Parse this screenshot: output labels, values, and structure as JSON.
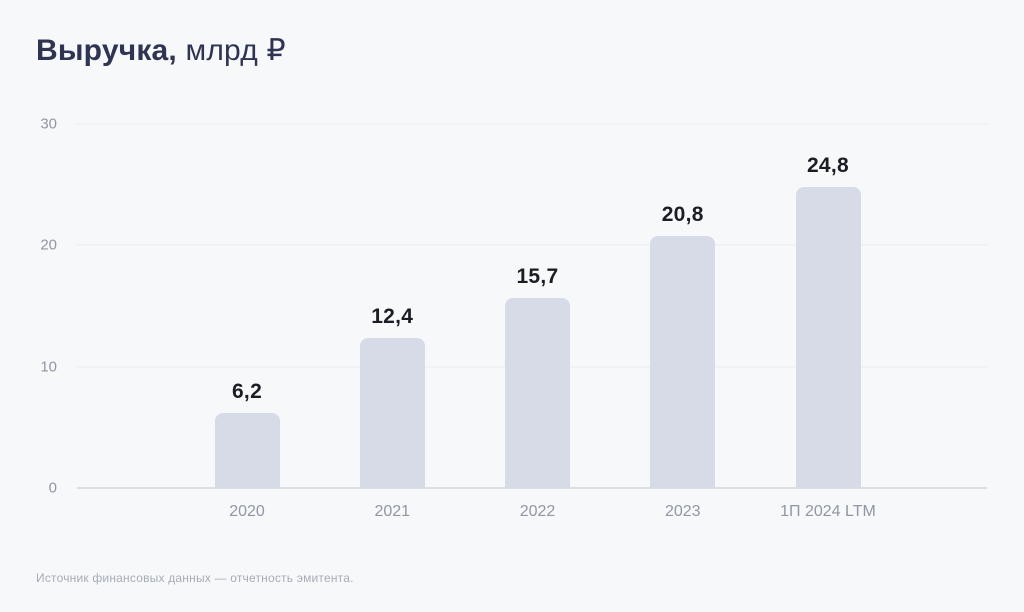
{
  "header": {
    "title_bold": "Выручка,",
    "title_unit": " млрд ₽"
  },
  "footer": {
    "source": "Источник финансовых данных — отчетность эмитента."
  },
  "colors": {
    "background": "#f7f8fa",
    "bar": "#d6dbe7",
    "title": "#2e3452",
    "value_label": "#1a1d24",
    "axis_label": "#9096a3",
    "gridline": "#e9ebef",
    "axis_line": "#dcdee5",
    "footer": "#a6abb6"
  },
  "chart_data": {
    "type": "bar",
    "title": "Выручка, млрд ₽",
    "categories": [
      "2020",
      "2021",
      "2022",
      "2023",
      "1П 2024 LTM"
    ],
    "values": [
      6.2,
      12.4,
      15.7,
      20.8,
      24.8
    ],
    "value_labels": [
      "6,2",
      "12,4",
      "15,7",
      "20,8",
      "24,8"
    ],
    "xlabel": "",
    "ylabel": "",
    "ylim": [
      0,
      30
    ],
    "yticks": [
      0,
      10,
      20,
      30
    ],
    "grid": true,
    "legend": false,
    "decimal_separator": ","
  }
}
